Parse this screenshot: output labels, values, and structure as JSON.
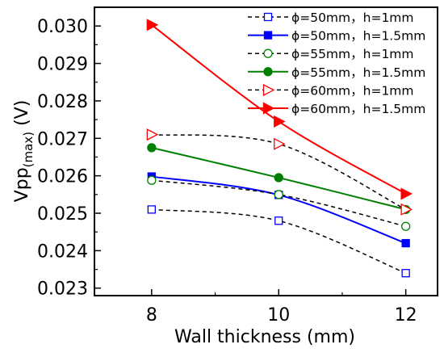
{
  "chart_data": {
    "type": "line",
    "title": "",
    "xlabel": "Wall thickness (mm)",
    "ylabel": {
      "main": "Vpp",
      "subscript": "(max)",
      "unit": " (V)"
    },
    "xlim": [
      7.1,
      12.5
    ],
    "ylim": [
      0.0228,
      0.0305
    ],
    "x_ticks": [
      8,
      10,
      12
    ],
    "x_tick_labels": [
      "8",
      "10",
      "12"
    ],
    "y_ticks": [
      0.023,
      0.024,
      0.025,
      0.026,
      0.027,
      0.028,
      0.029,
      0.03
    ],
    "y_tick_labels": [
      "0.023",
      "0.024",
      "0.025",
      "0.026",
      "0.027",
      "0.028",
      "0.029",
      "0.030"
    ],
    "grid": false,
    "legend_position": "top-right",
    "x": [
      8,
      10,
      12
    ],
    "series": [
      {
        "name": "ϕ=50mm，h=1mm",
        "color": "#0000ff",
        "line": "dashed",
        "line_color": "#000000",
        "marker": "square",
        "filled": false,
        "values": [
          0.0251,
          0.0248,
          0.0234
        ]
      },
      {
        "name": "ϕ=50mm，h=1.5mm",
        "color": "#0000ff",
        "line": "solid",
        "line_color": "#0000ff",
        "marker": "square",
        "filled": true,
        "values": [
          0.02598,
          0.02549,
          0.0242
        ]
      },
      {
        "name": "ϕ=55mm，h=1mm",
        "color": "#008000",
        "line": "dashed",
        "line_color": "#000000",
        "marker": "circle",
        "filled": false,
        "values": [
          0.02588,
          0.0255,
          0.02465
        ]
      },
      {
        "name": "ϕ=55mm，h=1.5mm",
        "color": "#008000",
        "line": "solid",
        "line_color": "#008000",
        "marker": "circle",
        "filled": true,
        "values": [
          0.02675,
          0.02595,
          0.0251
        ]
      },
      {
        "name": "ϕ=60mm，h=1mm",
        "color": "#ff0000",
        "line": "dashed",
        "line_color": "#000000",
        "marker": "triangle-right",
        "filled": false,
        "values": [
          0.0271,
          0.02685,
          0.0251
        ]
      },
      {
        "name": "ϕ=60mm，h=1.5mm",
        "color": "#ff0000",
        "line": "solid",
        "line_color": "#ff0000",
        "marker": "triangle-right",
        "filled": true,
        "values": [
          0.03003,
          0.02745,
          0.02552
        ]
      }
    ]
  }
}
